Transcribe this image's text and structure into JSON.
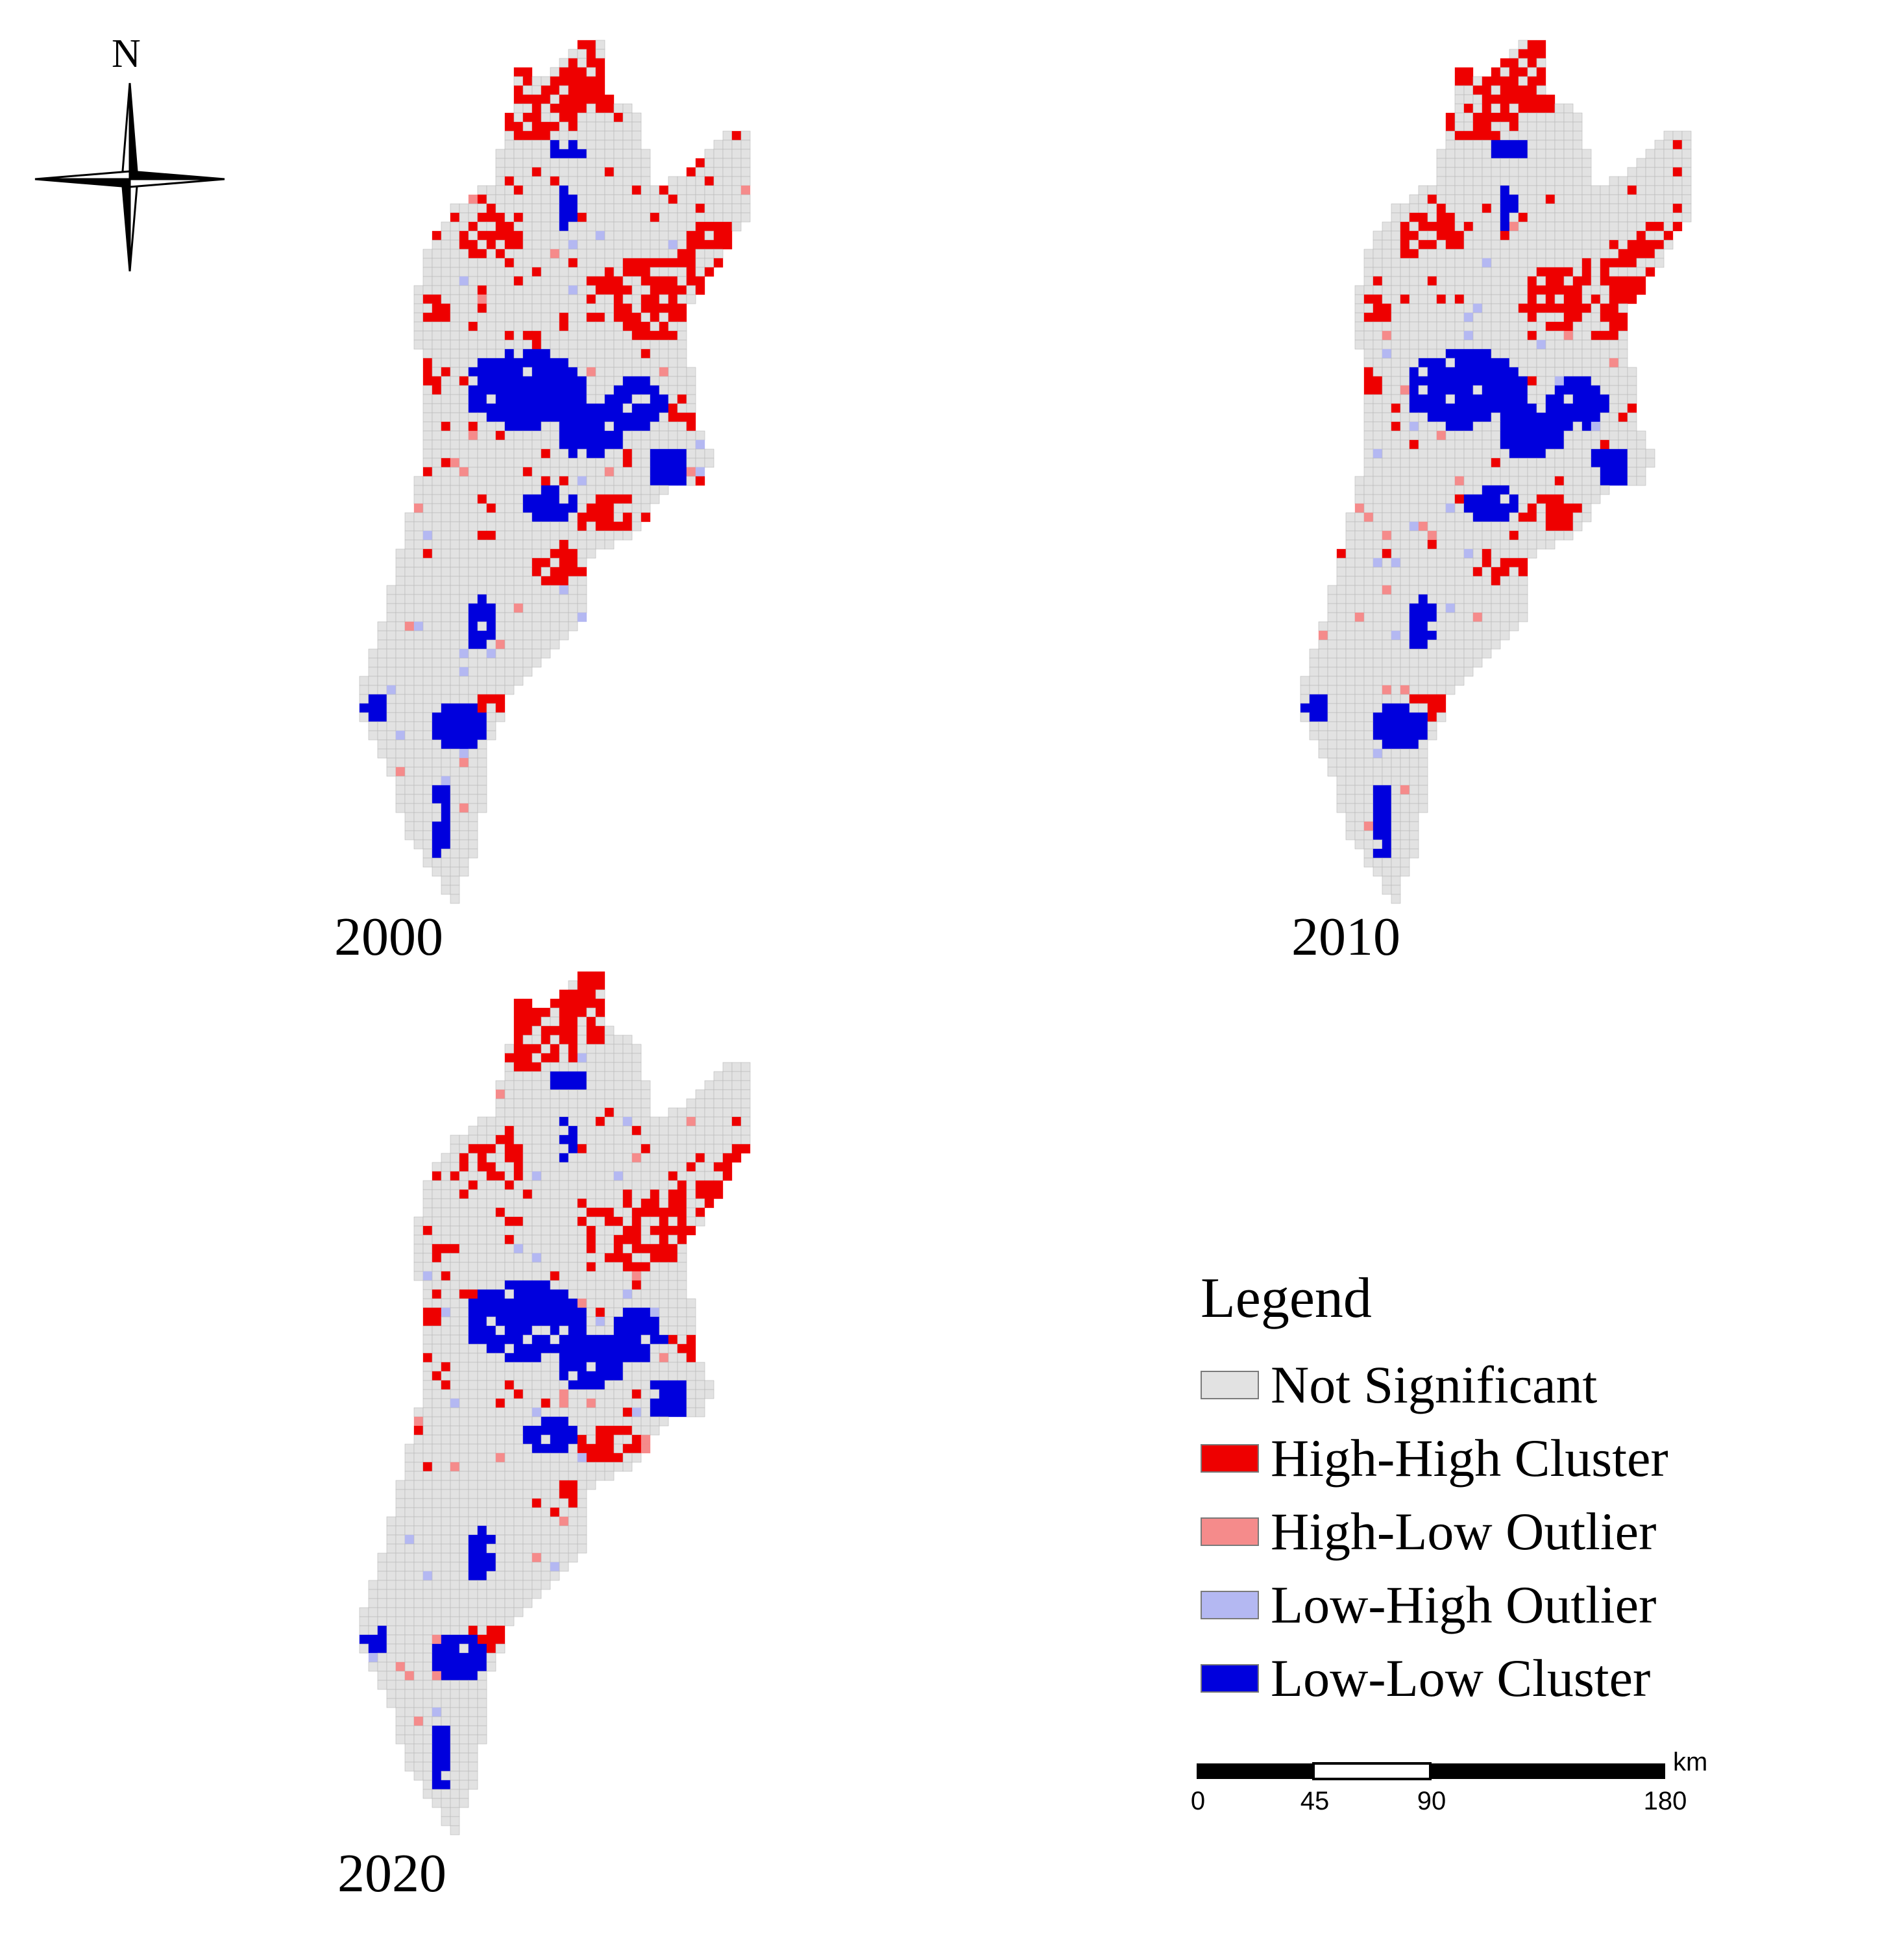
{
  "compass": {
    "north_label": "N"
  },
  "panels": [
    {
      "year": "2000"
    },
    {
      "year": "2010"
    },
    {
      "year": "2020"
    }
  ],
  "legend": {
    "title": "Legend",
    "items": [
      {
        "label": "Not Significant",
        "color": "#e2e2e2"
      },
      {
        "label": "High-High Cluster",
        "color": "#ee0000"
      },
      {
        "label": "High-Low Outlier",
        "color": "#f58b8b"
      },
      {
        "label": "Low-High Outlier",
        "color": "#b4b8f2"
      },
      {
        "label": "Low-Low Cluster",
        "color": "#0000dd"
      }
    ]
  },
  "scale_bar": {
    "unit": "km",
    "ticks": [
      "0",
      "45",
      "90",
      "180"
    ]
  }
}
